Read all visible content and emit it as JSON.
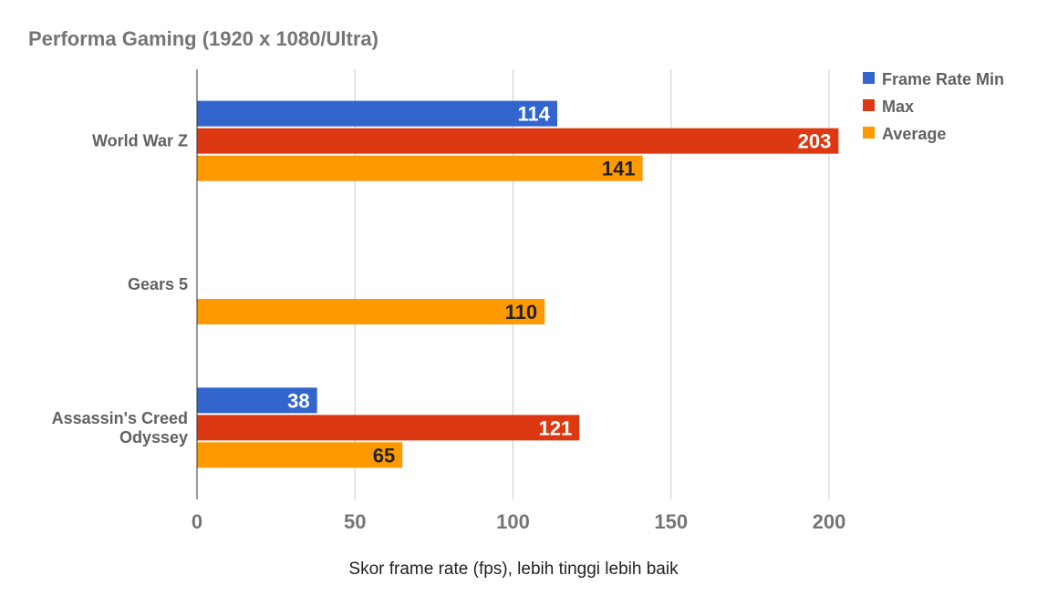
{
  "chart_data": {
    "type": "bar",
    "orientation": "horizontal",
    "title": "Performa Gaming (1920 x 1080/Ultra)",
    "xlabel": "Skor frame rate (fps), lebih tinggi lebih baik",
    "ylabel": "",
    "xlim": [
      0,
      200
    ],
    "ticks": [
      0,
      50,
      100,
      150,
      200
    ],
    "grid": true,
    "legend_position": "top-right",
    "categories": [
      {
        "lines": [
          "World War Z"
        ]
      },
      {
        "lines": [
          "Gears 5"
        ]
      },
      {
        "lines": [
          "Assassin's Creed",
          "Odyssey"
        ]
      }
    ],
    "series": [
      {
        "name": "Frame Rate Min",
        "color": "#3366cc",
        "label_color": "#ffffff",
        "values": [
          114,
          null,
          38
        ]
      },
      {
        "name": "Max",
        "color": "#dc3912",
        "label_color": "#ffffff",
        "values": [
          203,
          null,
          121
        ]
      },
      {
        "name": "Average",
        "color": "#ff9900",
        "label_color": "#222222",
        "values": [
          141,
          110,
          65
        ]
      }
    ]
  }
}
